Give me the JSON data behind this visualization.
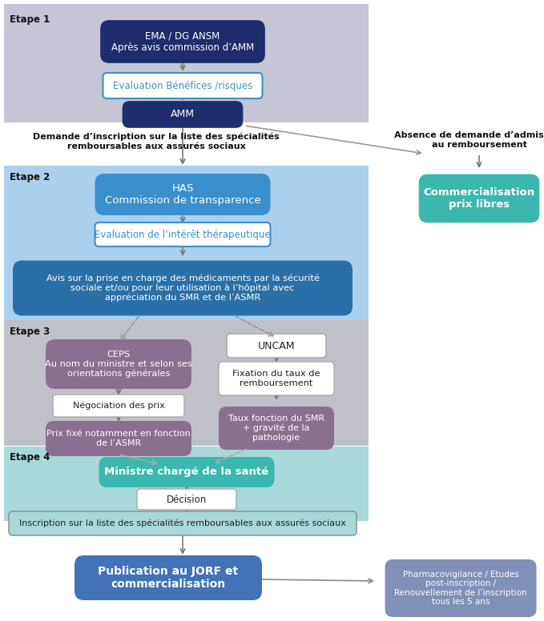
{
  "fig_width": 6.79,
  "fig_height": 7.76,
  "bg_color": "#ffffff",
  "etape1_bg": "#c5c5d5",
  "etape2_bg": "#aad0ee",
  "etape3_bg": "#c0c0c8",
  "etape4_bg": "#a8d8d8",
  "box_dark_navy": "#1e2d6b",
  "box_blue": "#3a90cc",
  "box_blue_darker": "#2a70a8",
  "box_white": "#ffffff",
  "box_mauve": "#8a7090",
  "box_teal": "#3ab8b0",
  "box_steel_blue": "#4272b8",
  "box_pharma": "#8090b8",
  "text_white": "#ffffff",
  "text_blue": "#3a90cc",
  "text_dark": "#222222",
  "etape1_label": "Etape 1",
  "etape2_label": "Etape 2",
  "etape3_label": "Etape 3",
  "etape4_label": "Etape 4",
  "box1_text": "EMA / DG ANSM\nAprès avis commission d’AMM",
  "box2_text": "Evaluation Bénéfices /risques",
  "box3_text": "AMM",
  "text_demande": "Demande d’inscription sur la liste des spécialités\nremboursables aux assurés sociaux",
  "text_absence": "Absence de demande d’admission\nau remboursement",
  "box_commercialisation": "Commercialisation\nprix libres",
  "box_HAS": "HAS\nCommission de transparence",
  "box_eval_interet": "Evaluation de l’intérêt thérapeutique",
  "box_avis": "Avis sur la prise en charge des médicaments par la sécurité\nsociale et/ou pour leur utilisation à l’hôpital avec\nappréciation du SMR et de l’ASMR",
  "box_CEPS": "CEPS\nAu nom du ministre et selon ses\norientations générales",
  "box_negociation": "Négociation des prix",
  "box_prix_fixe": "Prix fixé notamment en fonction\nde l’ASMR",
  "box_UNCAM": "UNCAM",
  "box_fixation": "Fixation du taux de\nremboursement",
  "box_taux": "Taux fonction du SMR\n+ gravité de la\npathologie",
  "box_ministre": "Ministre chargé de la santé",
  "box_decision": "Décision",
  "box_inscription": "Inscription sur la liste des spécialités remboursables aux assurés sociaux",
  "box_publication": "Publication au JORF et\ncommercialisation",
  "box_pharmacovigilance": "Pharmacovigilance / Etudes\npost-inscription /\nRenouvellement de l’inscription\ntous les 5 ans"
}
